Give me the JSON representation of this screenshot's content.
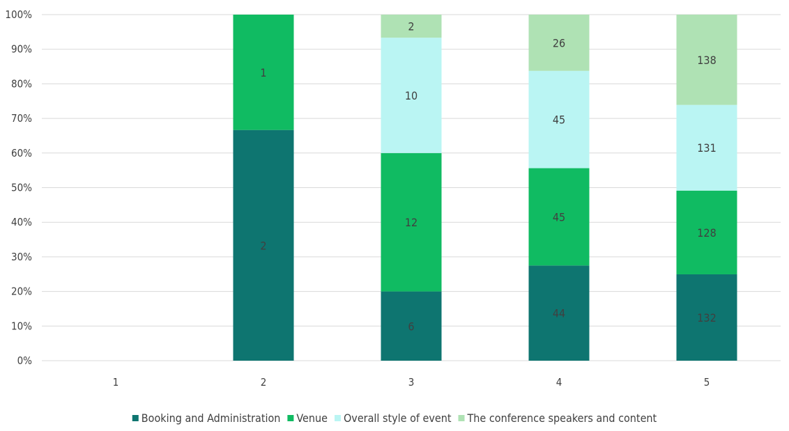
{
  "chart_data": {
    "type": "bar",
    "stacked": "percent",
    "categories": [
      "1",
      "2",
      "3",
      "4",
      "5"
    ],
    "series": [
      {
        "name": "Booking and Administration",
        "color": "#0e7570",
        "values": [
          0,
          2,
          6,
          44,
          132
        ]
      },
      {
        "name": "Venue",
        "color": "#10bb62",
        "values": [
          0,
          1,
          12,
          45,
          128
        ]
      },
      {
        "name": "Overall style of event",
        "color": "#baf5f3",
        "values": [
          0,
          0,
          10,
          45,
          131
        ]
      },
      {
        "name": "The conference speakers and content",
        "color": "#afe2b4",
        "values": [
          0,
          0,
          2,
          26,
          138
        ]
      }
    ],
    "y_ticks": [
      "0%",
      "10%",
      "20%",
      "30%",
      "40%",
      "50%",
      "60%",
      "70%",
      "80%",
      "90%",
      "100%"
    ],
    "ylim": [
      0,
      100
    ],
    "grid": true,
    "legend_position": "bottom",
    "title": "",
    "xlabel": "",
    "ylabel": ""
  }
}
